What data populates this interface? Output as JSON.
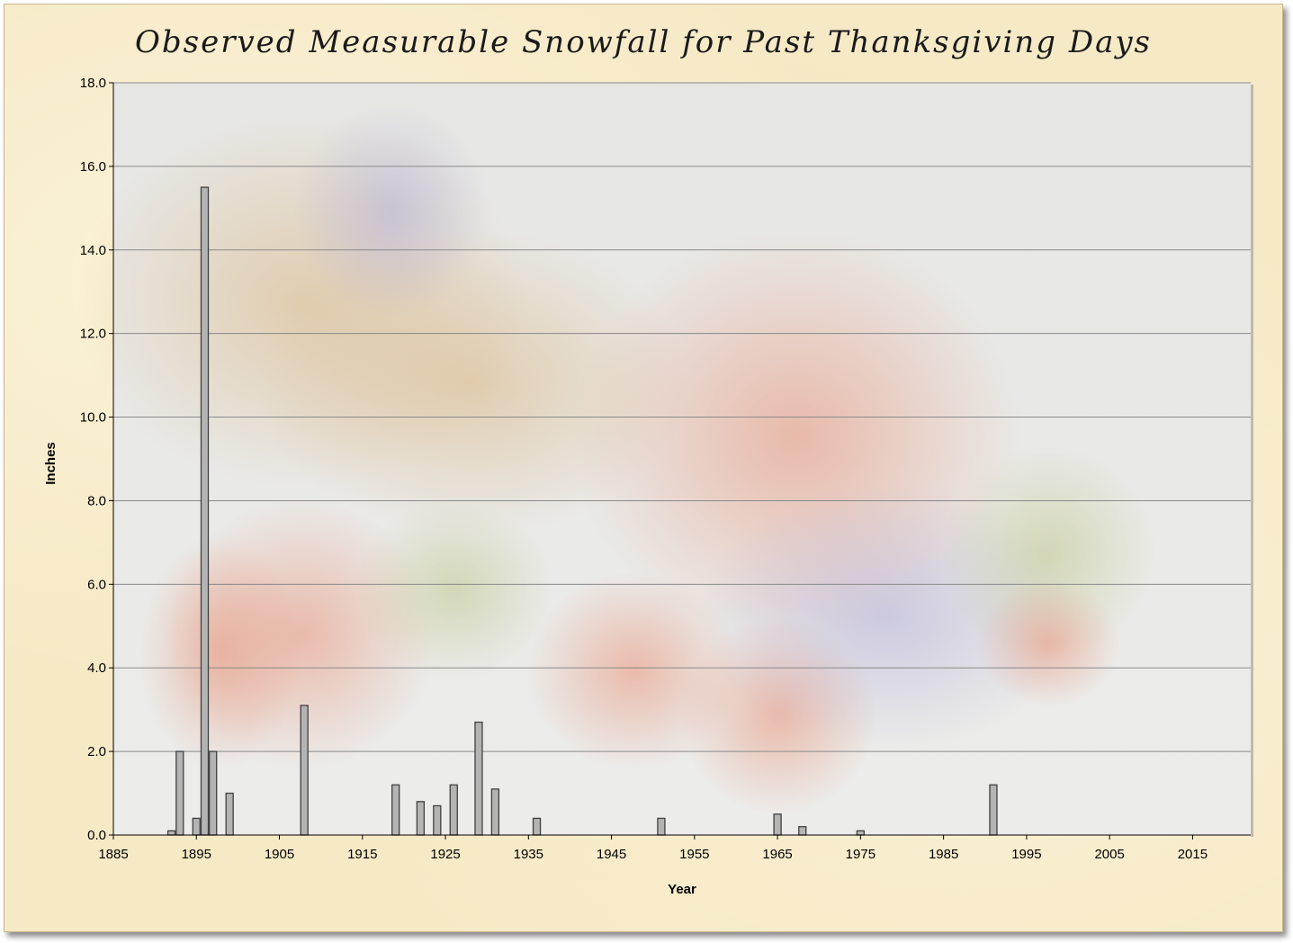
{
  "chart_data": {
    "type": "bar",
    "title": "Observed Measurable Snowfall for Past Thanksgiving Days",
    "xlabel": "Year",
    "ylabel": "Inches",
    "xlim": [
      1885,
      2022
    ],
    "ylim": [
      0,
      18
    ],
    "x_ticks": [
      "1885",
      "1895",
      "1905",
      "1915",
      "1925",
      "1935",
      "1945",
      "1955",
      "1965",
      "1975",
      "1985",
      "1995",
      "2005",
      "2015"
    ],
    "y_ticks": [
      "0.0",
      "2.0",
      "4.0",
      "6.0",
      "8.0",
      "10.0",
      "12.0",
      "14.0",
      "16.0",
      "18.0"
    ],
    "grid": "horizontal",
    "legend": "none",
    "bar_color": "#b4b4b4",
    "bar_edge_color": "#404040",
    "x": [
      1892,
      1893,
      1895,
      1896,
      1897,
      1899,
      1908,
      1919,
      1922,
      1924,
      1926,
      1929,
      1931,
      1936,
      1951,
      1965,
      1968,
      1975,
      1991
    ],
    "values": [
      0.1,
      2.0,
      0.4,
      15.5,
      2.0,
      1.0,
      3.1,
      1.2,
      0.8,
      0.7,
      1.2,
      2.7,
      1.1,
      0.4,
      0.4,
      0.5,
      0.2,
      0.1,
      1.2
    ]
  }
}
